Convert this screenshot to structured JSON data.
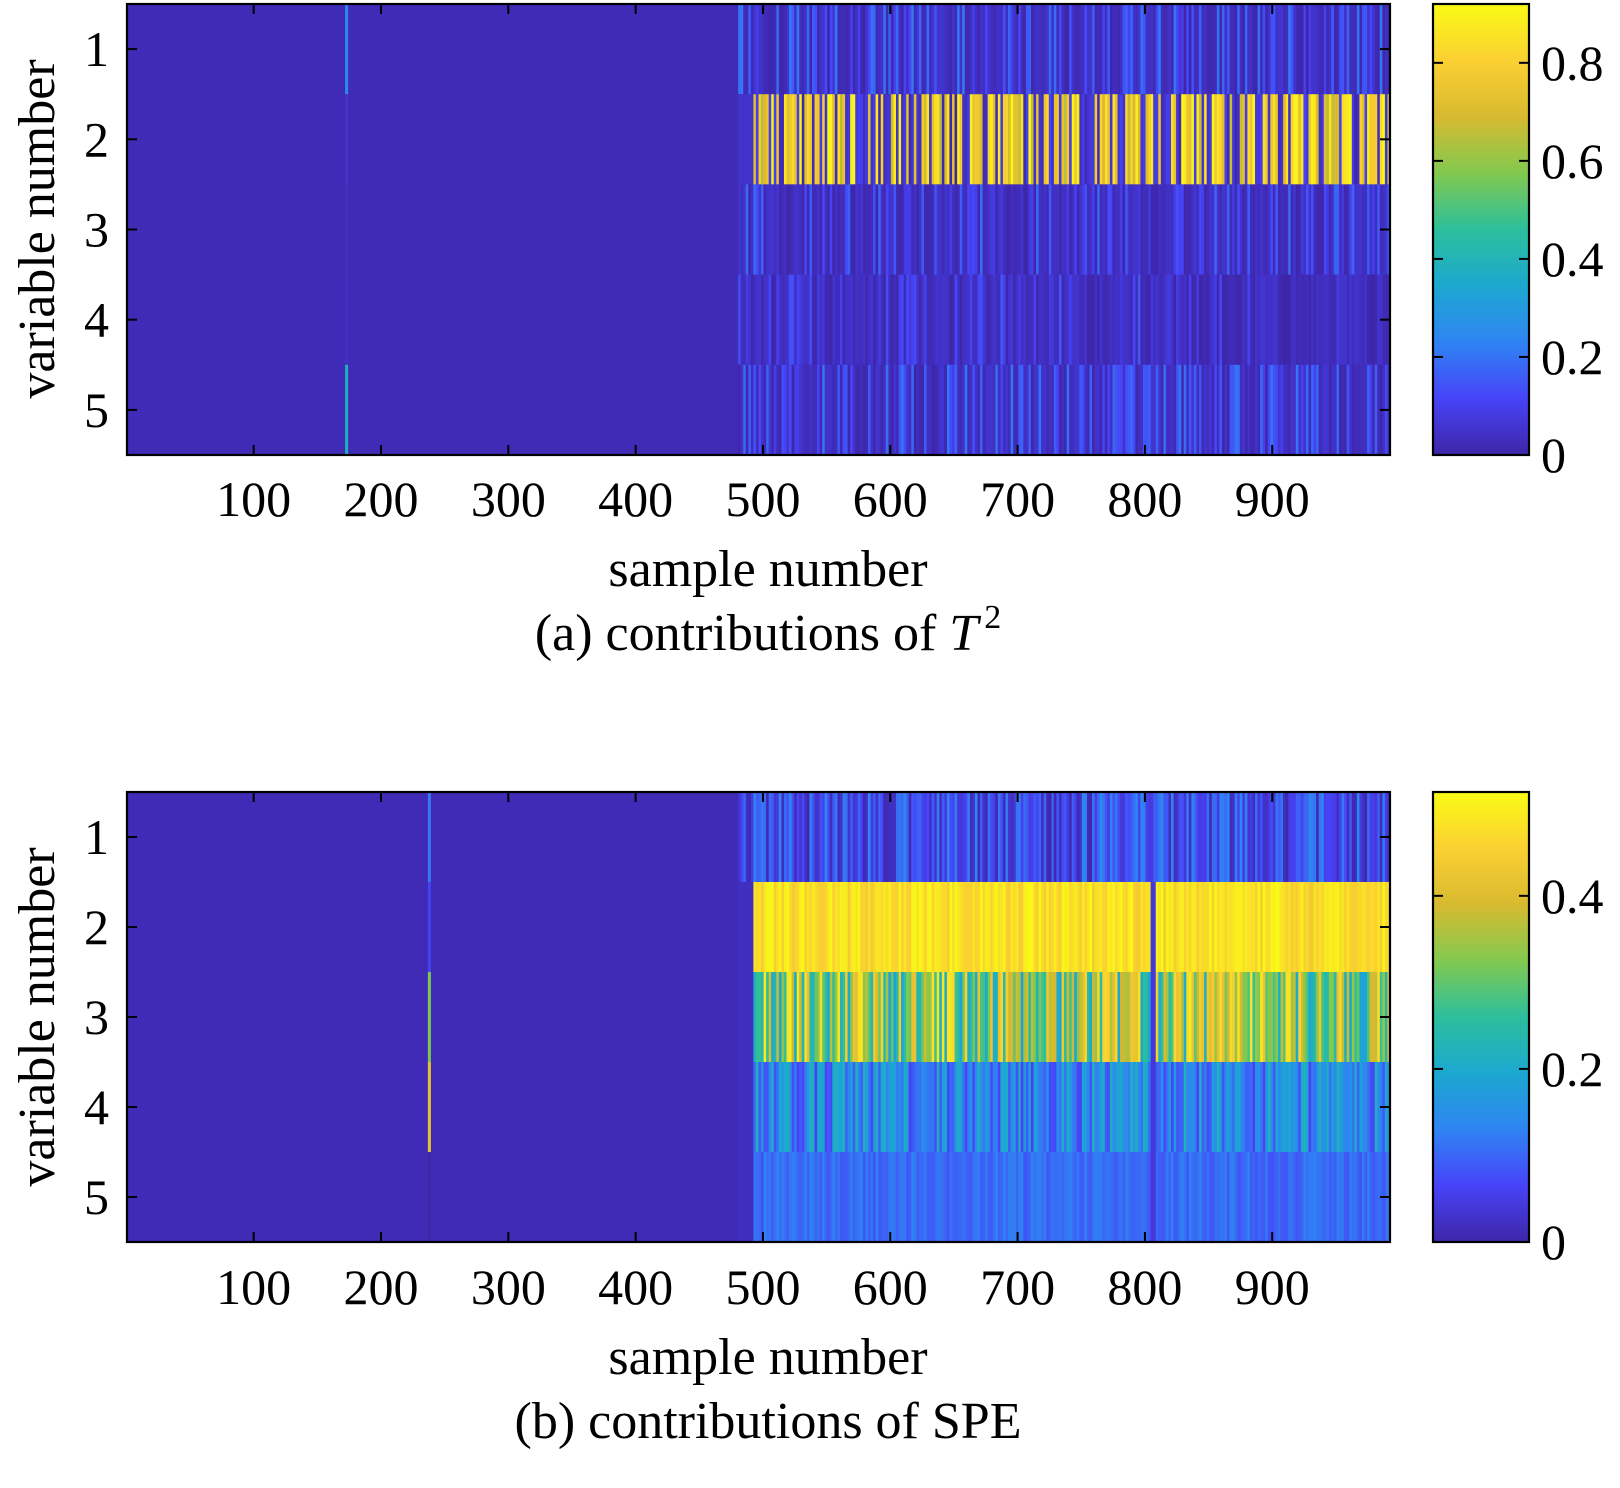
{
  "chart_data": [
    {
      "type": "heatmap",
      "id": "t2",
      "caption_prefix": "(a) contributions of ",
      "caption_math": "T",
      "caption_sup": "2",
      "xlabel": "sample number",
      "ylabel": "variable number",
      "xlim": [
        1,
        992
      ],
      "x_ticks": [
        100,
        200,
        300,
        400,
        500,
        600,
        700,
        800,
        900
      ],
      "y_ticks": [
        1,
        2,
        3,
        4,
        5
      ],
      "colorbar": {
        "min": 0,
        "max": 0.92,
        "ticks": [
          0,
          0.2,
          0.4,
          0.6,
          0.8
        ],
        "tick_labels": [
          "0",
          "0.2",
          "0.4",
          "0.6",
          "0.8"
        ]
      },
      "spike": {
        "sample": 173,
        "values": [
          0.25,
          0.05,
          0.03,
          0.04,
          0.38
        ]
      },
      "fault_onset_sample": 481,
      "fault_phase_mean": [
        0.09,
        0.78,
        0.07,
        0.03,
        0.09
      ],
      "fault_row2_active_fraction": 0.55,
      "seed": 7
    },
    {
      "type": "heatmap",
      "id": "spe",
      "caption_prefix": "(b) contributions of SPE",
      "caption_math": "",
      "caption_sup": "",
      "xlabel": "sample number",
      "ylabel": "variable number",
      "xlim": [
        1,
        992
      ],
      "x_ticks": [
        100,
        200,
        300,
        400,
        500,
        600,
        700,
        800,
        900
      ],
      "y_ticks": [
        1,
        2,
        3,
        4,
        5
      ],
      "colorbar": {
        "min": 0,
        "max": 0.52,
        "ticks": [
          0,
          0.2,
          0.4
        ],
        "tick_labels": [
          "0",
          "0.2",
          "0.4"
        ]
      },
      "spike": {
        "sample": 238,
        "values": [
          0.12,
          0.06,
          0.32,
          0.42,
          0.0
        ]
      },
      "fault_onset_sample": 481,
      "fault_row2_5_start_sample": 493,
      "fault_phase_mean": [
        0.08,
        0.5,
        0.38,
        0.12,
        0.1
      ],
      "gap_sample": 806,
      "seed": 13
    }
  ],
  "colormap": [
    "#3e26a8",
    "#4743f8",
    "#2f84f3",
    "#1ca8d0",
    "#2cbf9c",
    "#82c94f",
    "#d8ba30",
    "#fbd032",
    "#f9fb15"
  ]
}
